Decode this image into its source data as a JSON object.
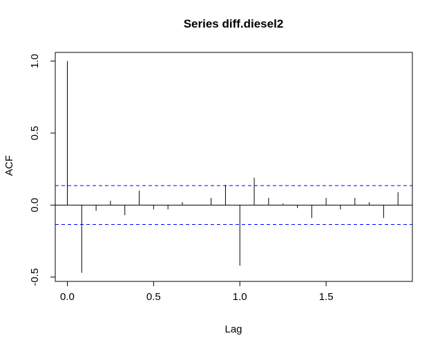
{
  "chart_data": {
    "type": "bar",
    "title": "Series  diff.diesel2",
    "xlabel": "Lag",
    "ylabel": "ACF",
    "xlim": [
      -0.07,
      2.0
    ],
    "ylim": [
      -0.53,
      1.06
    ],
    "x_ticks": [
      0.0,
      0.5,
      1.0,
      1.5
    ],
    "x_tick_labels": [
      "0.0",
      "0.5",
      "1.0",
      "1.5"
    ],
    "y_ticks": [
      -0.5,
      0.0,
      0.5,
      1.0
    ],
    "y_tick_labels": [
      "-0.5",
      "0.0",
      "0.5",
      "1.0"
    ],
    "grid": false,
    "series": [
      {
        "lags": [
          0.0,
          0.0833,
          0.1667,
          0.25,
          0.3333,
          0.4167,
          0.5,
          0.5833,
          0.6667,
          0.75,
          0.8333,
          0.9167,
          1.0,
          1.0833,
          1.1667,
          1.25,
          1.3333,
          1.4167,
          1.5,
          1.5833,
          1.6667,
          1.75,
          1.8333,
          1.9167
        ],
        "values": [
          1.0,
          -0.47,
          -0.04,
          0.03,
          -0.07,
          0.1,
          -0.03,
          -0.03,
          0.02,
          0.0,
          0.05,
          0.14,
          -0.42,
          0.19,
          0.05,
          0.01,
          -0.02,
          -0.09,
          0.05,
          -0.03,
          0.05,
          0.02,
          -0.09,
          0.09
        ]
      }
    ],
    "confidence_bounds": [
      0.135,
      -0.135
    ],
    "colors": {
      "spike": "#000000",
      "confidence": "#0000ff",
      "zero_line": "#000000"
    }
  }
}
